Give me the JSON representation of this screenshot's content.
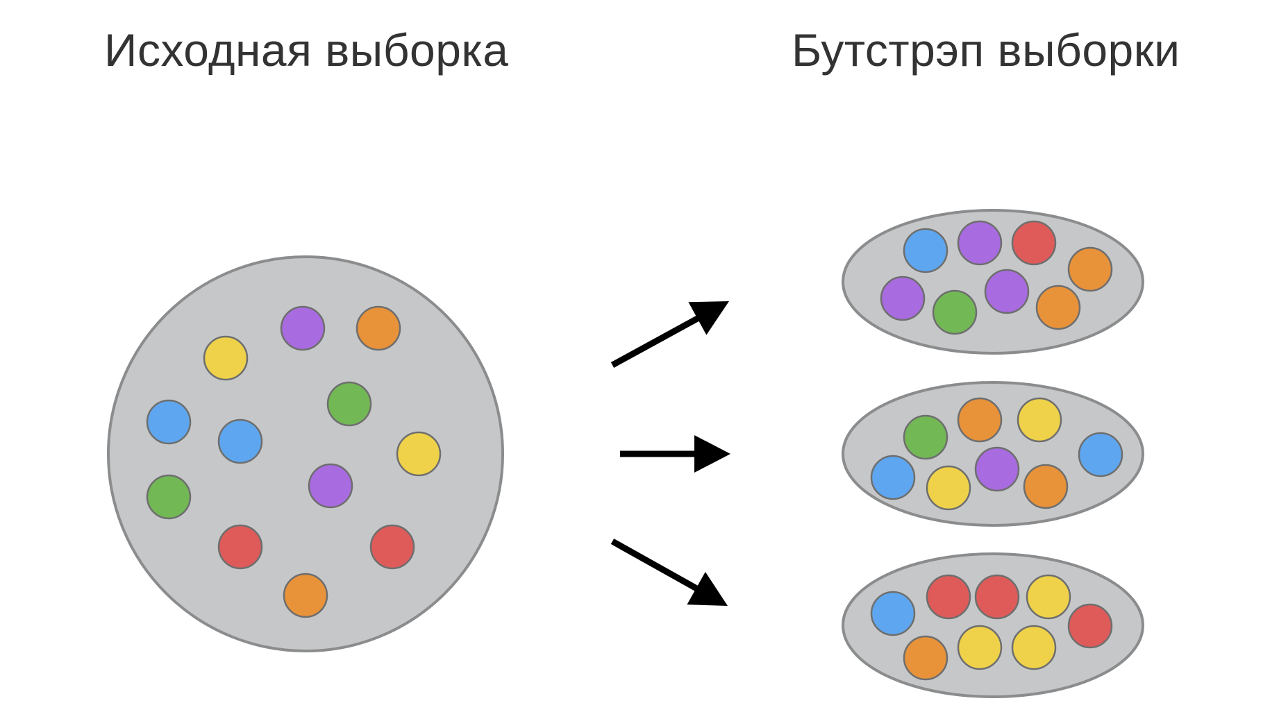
{
  "original_sample": {
    "title": "Исходная выборка",
    "balls": [
      "yellow",
      "purple",
      "orange",
      "blue",
      "green",
      "blue",
      "yellow",
      "green",
      "purple",
      "red",
      "red",
      "orange"
    ]
  },
  "bootstrap_samples": {
    "title": "Бутстрэп выборки",
    "samples": [
      {
        "balls": [
          "blue",
          "purple",
          "red",
          "orange",
          "purple",
          "green",
          "purple",
          "orange"
        ]
      },
      {
        "balls": [
          "green",
          "orange",
          "yellow",
          "blue",
          "blue",
          "yellow",
          "purple",
          "orange"
        ]
      },
      {
        "balls": [
          "blue",
          "red",
          "red",
          "yellow",
          "red",
          "orange",
          "yellow",
          "yellow"
        ]
      }
    ]
  },
  "colors": {
    "container_fill": "#c6c7c8",
    "container_stroke": "#8b8c8d",
    "ball_stroke": "#6e6e6e",
    "arrow": "#000000",
    "ball_colors": {
      "blue": "#5ea7f0",
      "purple": "#a86be0",
      "red": "#de5b59",
      "orange": "#e8923a",
      "green": "#72b855",
      "yellow": "#efd24a"
    }
  }
}
